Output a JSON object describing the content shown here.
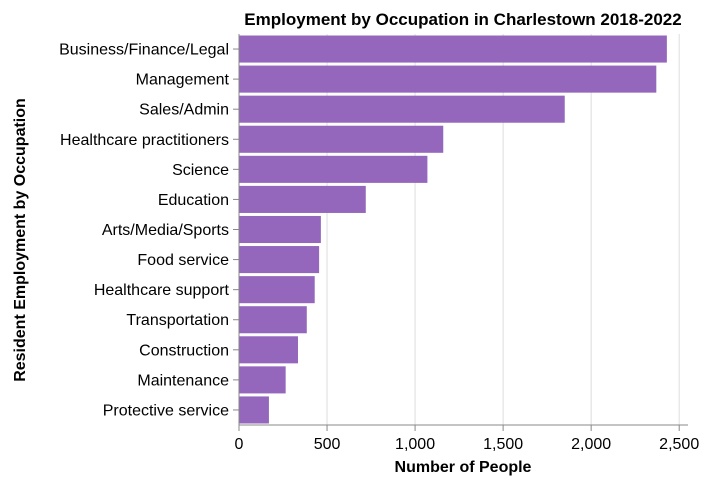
{
  "chart_data": {
    "type": "bar",
    "orientation": "horizontal",
    "title": "Employment by Occupation in Charlestown 2018-2022",
    "xlabel": "Number of People",
    "ylabel": "Resident Employment by Occupation",
    "categories": [
      "Business/Finance/Legal",
      "Management",
      "Sales/Admin",
      "Healthcare practitioners",
      "Science",
      "Education",
      "Arts/Media/Sports",
      "Food service",
      "Healthcare support",
      "Transportation",
      "Construction",
      "Maintenance",
      "Protective service"
    ],
    "values": [
      2430,
      2370,
      1850,
      1160,
      1070,
      720,
      465,
      455,
      430,
      385,
      335,
      265,
      170
    ],
    "xlim": [
      0,
      2550
    ],
    "xticks": [
      0,
      500,
      1000,
      1500,
      2000,
      2500
    ],
    "xtick_labels": [
      "0",
      "500",
      "1,000",
      "1,500",
      "2,000",
      "2,500"
    ],
    "grid": true,
    "bar_color": "#9467bd"
  }
}
